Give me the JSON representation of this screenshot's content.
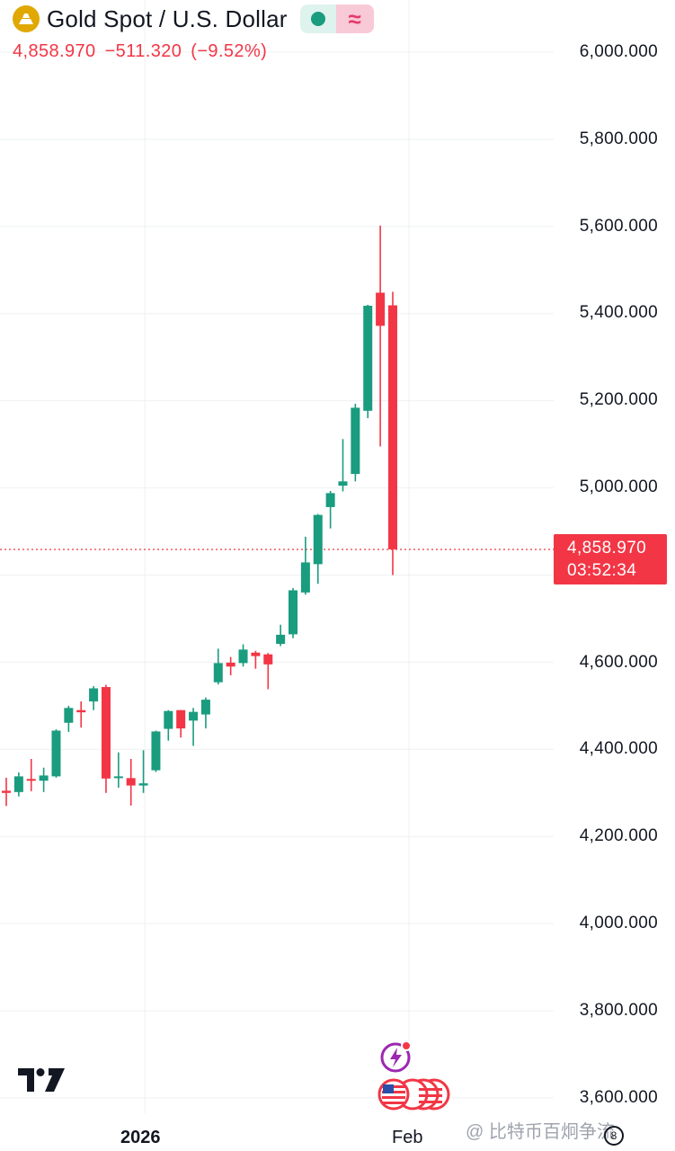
{
  "header": {
    "title": "Gold Spot / U.S. Dollar",
    "delayed_glyph": "≈",
    "logo_icon": "gold-bars-icon"
  },
  "quote": {
    "last": "4,858.970",
    "change": "−511.320",
    "change_pct": "(−9.52%)"
  },
  "price_tag": {
    "price": "4,858.970",
    "countdown": "03:52:34"
  },
  "colors": {
    "up": "#1a9c7f",
    "down": "#f23645",
    "grid": "#eef0f3",
    "text": "#131722"
  },
  "watermark": "@ 比特币百炯争流",
  "chart_data": {
    "type": "candlestick",
    "title": "Gold Spot / U.S. Dollar",
    "ylim": [
      3600,
      6000
    ],
    "y_ticks": [
      "6,000.000",
      "5,800.000",
      "5,600.000",
      "5,400.000",
      "5,200.000",
      "5,000.000",
      "4,600.000",
      "4,400.000",
      "4,200.000",
      "4,000.000",
      "3,800.000",
      "3,600.000"
    ],
    "x_ticks": [
      "2026",
      "Feb"
    ],
    "current_price": 4858.97,
    "candles": [
      {
        "open": 4305,
        "high": 4335,
        "low": 4270,
        "close": 4300
      },
      {
        "open": 4302,
        "high": 4347,
        "low": 4292,
        "close": 4338
      },
      {
        "open": 4332,
        "high": 4378,
        "low": 4304,
        "close": 4329
      },
      {
        "open": 4328,
        "high": 4358,
        "low": 4302,
        "close": 4340
      },
      {
        "open": 4338,
        "high": 4446,
        "low": 4335,
        "close": 4443
      },
      {
        "open": 4461,
        "high": 4500,
        "low": 4440,
        "close": 4495
      },
      {
        "open": 4490,
        "high": 4510,
        "low": 4450,
        "close": 4485
      },
      {
        "open": 4510,
        "high": 4545,
        "low": 4490,
        "close": 4540
      },
      {
        "open": 4543,
        "high": 4548,
        "low": 4300,
        "close": 4333
      },
      {
        "open": 4337,
        "high": 4393,
        "low": 4312,
        "close": 4338
      },
      {
        "open": 4334,
        "high": 4378,
        "low": 4271,
        "close": 4317
      },
      {
        "open": 4317,
        "high": 4398,
        "low": 4300,
        "close": 4322
      },
      {
        "open": 4352,
        "high": 4443,
        "low": 4348,
        "close": 4441
      },
      {
        "open": 4447,
        "high": 4490,
        "low": 4420,
        "close": 4488
      },
      {
        "open": 4490,
        "high": 4490,
        "low": 4427,
        "close": 4448
      },
      {
        "open": 4466,
        "high": 4495,
        "low": 4408,
        "close": 4486
      },
      {
        "open": 4480,
        "high": 4519,
        "low": 4448,
        "close": 4514
      },
      {
        "open": 4554,
        "high": 4631,
        "low": 4549,
        "close": 4598
      },
      {
        "open": 4599,
        "high": 4612,
        "low": 4570,
        "close": 4590
      },
      {
        "open": 4598,
        "high": 4641,
        "low": 4590,
        "close": 4629
      },
      {
        "open": 4622,
        "high": 4626,
        "low": 4585,
        "close": 4614
      },
      {
        "open": 4618,
        "high": 4621,
        "low": 4538,
        "close": 4595
      },
      {
        "open": 4642,
        "high": 4686,
        "low": 4637,
        "close": 4663
      },
      {
        "open": 4664,
        "high": 4770,
        "low": 4655,
        "close": 4765
      },
      {
        "open": 4760,
        "high": 4888,
        "low": 4755,
        "close": 4829
      },
      {
        "open": 4825,
        "high": 4940,
        "low": 4780,
        "close": 4938
      },
      {
        "open": 4956,
        "high": 4993,
        "low": 4907,
        "close": 4988
      },
      {
        "open": 5005,
        "high": 5112,
        "low": 4992,
        "close": 5015
      },
      {
        "open": 5032,
        "high": 5193,
        "low": 5015,
        "close": 5184
      },
      {
        "open": 5177,
        "high": 5420,
        "low": 5160,
        "close": 5418
      },
      {
        "open": 5448,
        "high": 5602,
        "low": 5095,
        "close": 5372
      },
      {
        "open": 5419,
        "high": 5450,
        "low": 4800,
        "close": 4859
      }
    ]
  }
}
